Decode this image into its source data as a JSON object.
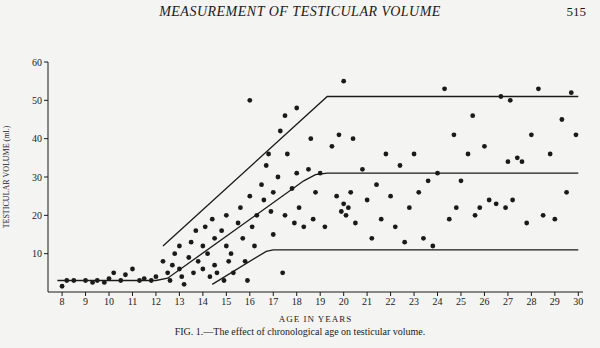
{
  "header": "MEASUREMENT OF TESTICULAR VOLUME",
  "page_number": 515,
  "chart_data": {
    "type": "scatter",
    "title": "FIG. 1.—The effect of chronological age on testicular volume.",
    "x_label": "AGE IN YEARS",
    "y_label": "TESTICULAR VOLUME (ml.)",
    "xlim": [
      7.4,
      30.2
    ],
    "xticks": [
      8,
      9,
      10,
      11,
      12,
      13,
      14,
      15,
      16,
      17,
      18,
      19,
      20,
      21,
      22,
      23,
      24,
      25,
      26,
      27,
      28,
      29,
      30
    ],
    "ylim": [
      0,
      60
    ],
    "yticks": [
      10,
      20,
      30,
      40,
      50,
      60
    ],
    "grid": false,
    "series": [
      {
        "type": "scatter",
        "color": "#1a1a1a",
        "marker": "circle",
        "x": [
          8.0,
          8.2,
          8.5,
          9.0,
          9.3,
          9.5,
          9.8,
          10.0,
          10.2,
          10.5,
          10.7,
          11.0,
          11.3,
          11.5,
          11.8,
          12.0,
          12.3,
          12.5,
          12.6,
          12.7,
          12.8,
          13.0,
          13.0,
          13.1,
          13.2,
          13.4,
          13.5,
          13.6,
          13.7,
          13.8,
          14.0,
          14.0,
          14.1,
          14.2,
          14.3,
          14.4,
          14.5,
          14.5,
          14.6,
          14.8,
          14.9,
          15.0,
          15.0,
          15.1,
          15.2,
          15.3,
          15.5,
          15.6,
          15.7,
          15.8,
          15.9,
          16.0,
          16.0,
          16.1,
          16.2,
          16.3,
          16.5,
          16.6,
          16.7,
          16.8,
          16.9,
          17.0,
          17.0,
          17.2,
          17.3,
          17.4,
          17.5,
          17.5,
          17.6,
          17.8,
          17.9,
          18.0,
          18.0,
          18.1,
          18.3,
          18.5,
          18.6,
          18.7,
          18.8,
          19.0,
          19.2,
          19.5,
          19.7,
          19.8,
          19.9,
          20.0,
          20.0,
          20.1,
          20.2,
          20.3,
          20.4,
          20.5,
          20.8,
          21.0,
          21.2,
          21.4,
          21.6,
          21.8,
          22.0,
          22.2,
          22.4,
          22.6,
          22.8,
          23.0,
          23.2,
          23.4,
          23.6,
          23.8,
          24.0,
          24.3,
          24.5,
          24.7,
          24.8,
          25.0,
          25.3,
          25.5,
          25.6,
          25.8,
          26.0,
          26.2,
          26.5,
          26.7,
          26.9,
          27.0,
          27.1,
          27.2,
          27.4,
          27.6,
          27.8,
          28.0,
          28.3,
          28.5,
          28.8,
          29.0,
          29.3,
          29.5,
          29.7,
          29.9
        ],
        "values": [
          1.5,
          3,
          3,
          3,
          2.5,
          3,
          2.5,
          3.5,
          5,
          3,
          4.5,
          6,
          3,
          3.5,
          3,
          4,
          8,
          5,
          3,
          7,
          10,
          12,
          6,
          4,
          2,
          9,
          13,
          5,
          16,
          8,
          12,
          6,
          17,
          10,
          4,
          19,
          14,
          7,
          5,
          16,
          3,
          12,
          20,
          8,
          10,
          5,
          18,
          22,
          14,
          8,
          3,
          50,
          25,
          17,
          12,
          20,
          28,
          24,
          33,
          36,
          21,
          26,
          15,
          30,
          42,
          5,
          46,
          20,
          36,
          27,
          18,
          48,
          31,
          22,
          17,
          32,
          40,
          19,
          26,
          31,
          17,
          38,
          25,
          41,
          21,
          55,
          23,
          20,
          22,
          26,
          40,
          18,
          32,
          24,
          14,
          28,
          19,
          36,
          25,
          17,
          33,
          13,
          22,
          36,
          26,
          14,
          29,
          12,
          31,
          53,
          19,
          41,
          22,
          29,
          36,
          46,
          20,
          22,
          38,
          24,
          23,
          51,
          22,
          34,
          50,
          24,
          35,
          34,
          18,
          41,
          53,
          20,
          36,
          19,
          45,
          26,
          52,
          41
        ]
      },
      {
        "type": "line",
        "color": "#1a1a1a",
        "line_style": "solid",
        "x": [
          12.3,
          19.3,
          30
        ],
        "values": [
          12,
          51,
          51
        ]
      },
      {
        "type": "line",
        "color": "#1a1a1a",
        "line_style": "solid",
        "x": [
          7.8,
          12.0,
          12.5,
          18.3,
          18.8,
          19.3,
          30
        ],
        "values": [
          3,
          3,
          3.6,
          29,
          30.6,
          31,
          31
        ]
      },
      {
        "type": "line",
        "color": "#1a1a1a",
        "line_style": "solid",
        "x": [
          14.4,
          16.7,
          17.0,
          30
        ],
        "values": [
          2,
          10.6,
          11,
          11
        ]
      }
    ]
  }
}
